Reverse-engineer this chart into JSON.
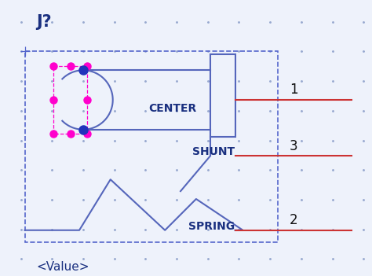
{
  "bg_color": "#eef2fb",
  "dot_color": "#99aad0",
  "dashed_box_color": "#5566cc",
  "symbol_line_color": "#5566bb",
  "pin_line_color": "#cc3333",
  "magenta_dot_color": "#ff00cc",
  "blue_dot_color": "#2233bb",
  "label_color": "#1a3080",
  "text_color_dark": "#111111",
  "title": "J?",
  "value": "<Value>",
  "pin1_label": "CENTER",
  "pin2_label": "SHUNT",
  "pin3_label": "SPRING",
  "pin_num_1": "1",
  "pin_num_3": "3",
  "pin_num_2": "2",
  "figw": 4.74,
  "figh": 3.51,
  "dpi": 100
}
